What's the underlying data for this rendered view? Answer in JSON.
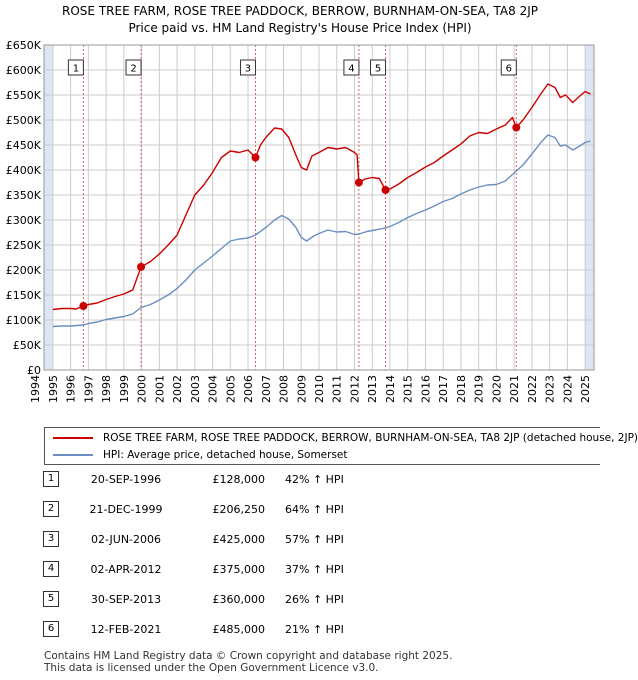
{
  "title_line1": "ROSE TREE FARM, ROSE TREE PADDOCK, BERROW, BURNHAM-ON-SEA, TA8 2JP",
  "title_line2": "Price paid vs. HM Land Registry's House Price Index (HPI)",
  "colors": {
    "property": "#cc0000",
    "hpi": "#6a8fc4",
    "shade": "#dde6f5",
    "grid": "#cccccc",
    "marker_line": "#e06060"
  },
  "chart_data": {
    "type": "line",
    "ylim": [
      0,
      650000
    ],
    "xlim": [
      1994.5,
      2025.5
    ],
    "y_ticks": [
      0,
      50000,
      100000,
      150000,
      200000,
      250000,
      300000,
      350000,
      400000,
      450000,
      500000,
      550000,
      600000,
      650000
    ],
    "y_tick_labels": [
      "£0",
      "£50K",
      "£100K",
      "£150K",
      "£200K",
      "£250K",
      "£300K",
      "£350K",
      "£400K",
      "£450K",
      "£500K",
      "£550K",
      "£600K",
      "£650K"
    ],
    "x_ticks": [
      1994,
      1995,
      1996,
      1997,
      1998,
      1999,
      2000,
      2001,
      2002,
      2003,
      2004,
      2005,
      2006,
      2007,
      2008,
      2009,
      2010,
      2011,
      2012,
      2013,
      2014,
      2015,
      2016,
      2017,
      2018,
      2019,
      2020,
      2021,
      2022,
      2023,
      2024,
      2025
    ],
    "x_tick_labels": [
      "1994",
      "1995",
      "1996",
      "1997",
      "1998",
      "1999",
      "2000",
      "2001",
      "2002",
      "2003",
      "2004",
      "2005",
      "2006",
      "2007",
      "2008",
      "2009",
      "2010",
      "2011",
      "2012",
      "2013",
      "2014",
      "2015",
      "2016",
      "2017",
      "2018",
      "2019",
      "2020",
      "2021",
      "2022",
      "2023",
      "2024",
      "2025"
    ],
    "grid": true,
    "legend_position": "below",
    "series": [
      {
        "name": "ROSE TREE FARM, ROSE TREE PADDOCK, BERROW, BURNHAM-ON-SEA, TA8 2JP (detached house, 2JP)",
        "color": "#cc0000",
        "points": [
          [
            1995.0,
            121000
          ],
          [
            1995.5,
            123000
          ],
          [
            1996.0,
            123000
          ],
          [
            1996.3,
            122000
          ],
          [
            1996.72,
            128000
          ],
          [
            1997.0,
            131000
          ],
          [
            1997.5,
            134000
          ],
          [
            1998.0,
            141000
          ],
          [
            1998.5,
            147000
          ],
          [
            1999.0,
            152000
          ],
          [
            1999.5,
            160000
          ],
          [
            1999.97,
            206250
          ],
          [
            2000.5,
            217000
          ],
          [
            2001.0,
            232000
          ],
          [
            2001.5,
            250000
          ],
          [
            2002.0,
            270000
          ],
          [
            2002.5,
            310000
          ],
          [
            2003.0,
            350000
          ],
          [
            2003.5,
            370000
          ],
          [
            2004.0,
            395000
          ],
          [
            2004.5,
            425000
          ],
          [
            2005.0,
            438000
          ],
          [
            2005.5,
            435000
          ],
          [
            2006.0,
            440000
          ],
          [
            2006.42,
            425000
          ],
          [
            2006.7,
            450000
          ],
          [
            2007.0,
            465000
          ],
          [
            2007.5,
            484000
          ],
          [
            2007.9,
            482000
          ],
          [
            2008.3,
            465000
          ],
          [
            2008.7,
            430000
          ],
          [
            2009.0,
            405000
          ],
          [
            2009.3,
            400000
          ],
          [
            2009.6,
            428000
          ],
          [
            2010.0,
            435000
          ],
          [
            2010.5,
            445000
          ],
          [
            2011.0,
            442000
          ],
          [
            2011.5,
            445000
          ],
          [
            2012.0,
            435000
          ],
          [
            2012.15,
            430000
          ],
          [
            2012.25,
            375000
          ],
          [
            2012.6,
            382000
          ],
          [
            2013.0,
            385000
          ],
          [
            2013.4,
            383000
          ],
          [
            2013.75,
            360000
          ],
          [
            2014.0,
            362000
          ],
          [
            2014.5,
            372000
          ],
          [
            2015.0,
            385000
          ],
          [
            2015.5,
            395000
          ],
          [
            2016.0,
            406000
          ],
          [
            2016.5,
            415000
          ],
          [
            2017.0,
            428000
          ],
          [
            2017.5,
            440000
          ],
          [
            2018.0,
            452000
          ],
          [
            2018.5,
            468000
          ],
          [
            2019.0,
            475000
          ],
          [
            2019.5,
            473000
          ],
          [
            2020.0,
            482000
          ],
          [
            2020.5,
            490000
          ],
          [
            2020.9,
            505000
          ],
          [
            2021.12,
            485000
          ],
          [
            2021.5,
            500000
          ],
          [
            2022.0,
            525000
          ],
          [
            2022.5,
            552000
          ],
          [
            2022.9,
            572000
          ],
          [
            2023.3,
            565000
          ],
          [
            2023.6,
            545000
          ],
          [
            2023.9,
            550000
          ],
          [
            2024.3,
            535000
          ],
          [
            2024.7,
            548000
          ],
          [
            2025.0,
            557000
          ],
          [
            2025.3,
            552000
          ]
        ]
      },
      {
        "name": "HPI: Average price, detached house, Somerset",
        "color": "#6a8fc4",
        "points": [
          [
            1995.0,
            87000
          ],
          [
            1995.5,
            88000
          ],
          [
            1996.0,
            88000
          ],
          [
            1996.72,
            90000
          ],
          [
            1997.0,
            93000
          ],
          [
            1997.5,
            96000
          ],
          [
            1998.0,
            101000
          ],
          [
            1998.5,
            104000
          ],
          [
            1999.0,
            107000
          ],
          [
            1999.5,
            112000
          ],
          [
            1999.97,
            125000
          ],
          [
            2000.5,
            131000
          ],
          [
            2001.0,
            140000
          ],
          [
            2001.5,
            150000
          ],
          [
            2002.0,
            163000
          ],
          [
            2002.5,
            180000
          ],
          [
            2003.0,
            200000
          ],
          [
            2003.5,
            214000
          ],
          [
            2004.0,
            228000
          ],
          [
            2004.5,
            243000
          ],
          [
            2005.0,
            258000
          ],
          [
            2005.5,
            262000
          ],
          [
            2006.0,
            264000
          ],
          [
            2006.42,
            270000
          ],
          [
            2007.0,
            285000
          ],
          [
            2007.5,
            300000
          ],
          [
            2007.9,
            309000
          ],
          [
            2008.3,
            302000
          ],
          [
            2008.7,
            285000
          ],
          [
            2009.0,
            265000
          ],
          [
            2009.3,
            258000
          ],
          [
            2009.7,
            268000
          ],
          [
            2010.0,
            273000
          ],
          [
            2010.5,
            280000
          ],
          [
            2011.0,
            276000
          ],
          [
            2011.5,
            277000
          ],
          [
            2012.0,
            271000
          ],
          [
            2012.25,
            272000
          ],
          [
            2012.7,
            277000
          ],
          [
            2013.0,
            279000
          ],
          [
            2013.75,
            284000
          ],
          [
            2014.0,
            287000
          ],
          [
            2014.5,
            295000
          ],
          [
            2015.0,
            305000
          ],
          [
            2015.5,
            313000
          ],
          [
            2016.0,
            320000
          ],
          [
            2016.5,
            328000
          ],
          [
            2017.0,
            337000
          ],
          [
            2017.5,
            343000
          ],
          [
            2018.0,
            352000
          ],
          [
            2018.5,
            360000
          ],
          [
            2019.0,
            366000
          ],
          [
            2019.5,
            370000
          ],
          [
            2020.0,
            371000
          ],
          [
            2020.5,
            378000
          ],
          [
            2021.12,
            398000
          ],
          [
            2021.5,
            410000
          ],
          [
            2022.0,
            432000
          ],
          [
            2022.5,
            455000
          ],
          [
            2022.9,
            470000
          ],
          [
            2023.3,
            465000
          ],
          [
            2023.6,
            448000
          ],
          [
            2023.9,
            450000
          ],
          [
            2024.3,
            440000
          ],
          [
            2024.7,
            448000
          ],
          [
            2025.0,
            455000
          ],
          [
            2025.3,
            458000
          ]
        ]
      }
    ],
    "sale_markers": [
      {
        "label": "1",
        "x": 1996.72,
        "y": 128000
      },
      {
        "label": "2",
        "x": 1999.97,
        "y": 206250
      },
      {
        "label": "3",
        "x": 2006.42,
        "y": 425000
      },
      {
        "label": "4",
        "x": 2012.25,
        "y": 375000
      },
      {
        "label": "5",
        "x": 2013.75,
        "y": 360000
      },
      {
        "label": "6",
        "x": 2021.12,
        "y": 485000
      }
    ],
    "shaded_ranges": [
      [
        1994.5,
        1995.0
      ],
      [
        2025.0,
        2025.5
      ]
    ]
  },
  "legend": {
    "property_label": "ROSE TREE FARM, ROSE TREE PADDOCK, BERROW, BURNHAM-ON-SEA, TA8 2JP (detached house, 2JP)",
    "hpi_label": "HPI: Average price, detached house, Somerset"
  },
  "sales": [
    {
      "num": "1",
      "date": "20-SEP-1996",
      "price": "£128,000",
      "hpi": "42% ↑ HPI"
    },
    {
      "num": "2",
      "date": "21-DEC-1999",
      "price": "£206,250",
      "hpi": "64% ↑ HPI"
    },
    {
      "num": "3",
      "date": "02-JUN-2006",
      "price": "£425,000",
      "hpi": "57% ↑ HPI"
    },
    {
      "num": "4",
      "date": "02-APR-2012",
      "price": "£375,000",
      "hpi": "37% ↑ HPI"
    },
    {
      "num": "5",
      "date": "30-SEP-2013",
      "price": "£360,000",
      "hpi": "26% ↑ HPI"
    },
    {
      "num": "6",
      "date": "12-FEB-2021",
      "price": "£485,000",
      "hpi": "21% ↑ HPI"
    }
  ],
  "footer_line1": "Contains HM Land Registry data © Crown copyright and database right 2025.",
  "footer_line2": "This data is licensed under the Open Government Licence v3.0."
}
